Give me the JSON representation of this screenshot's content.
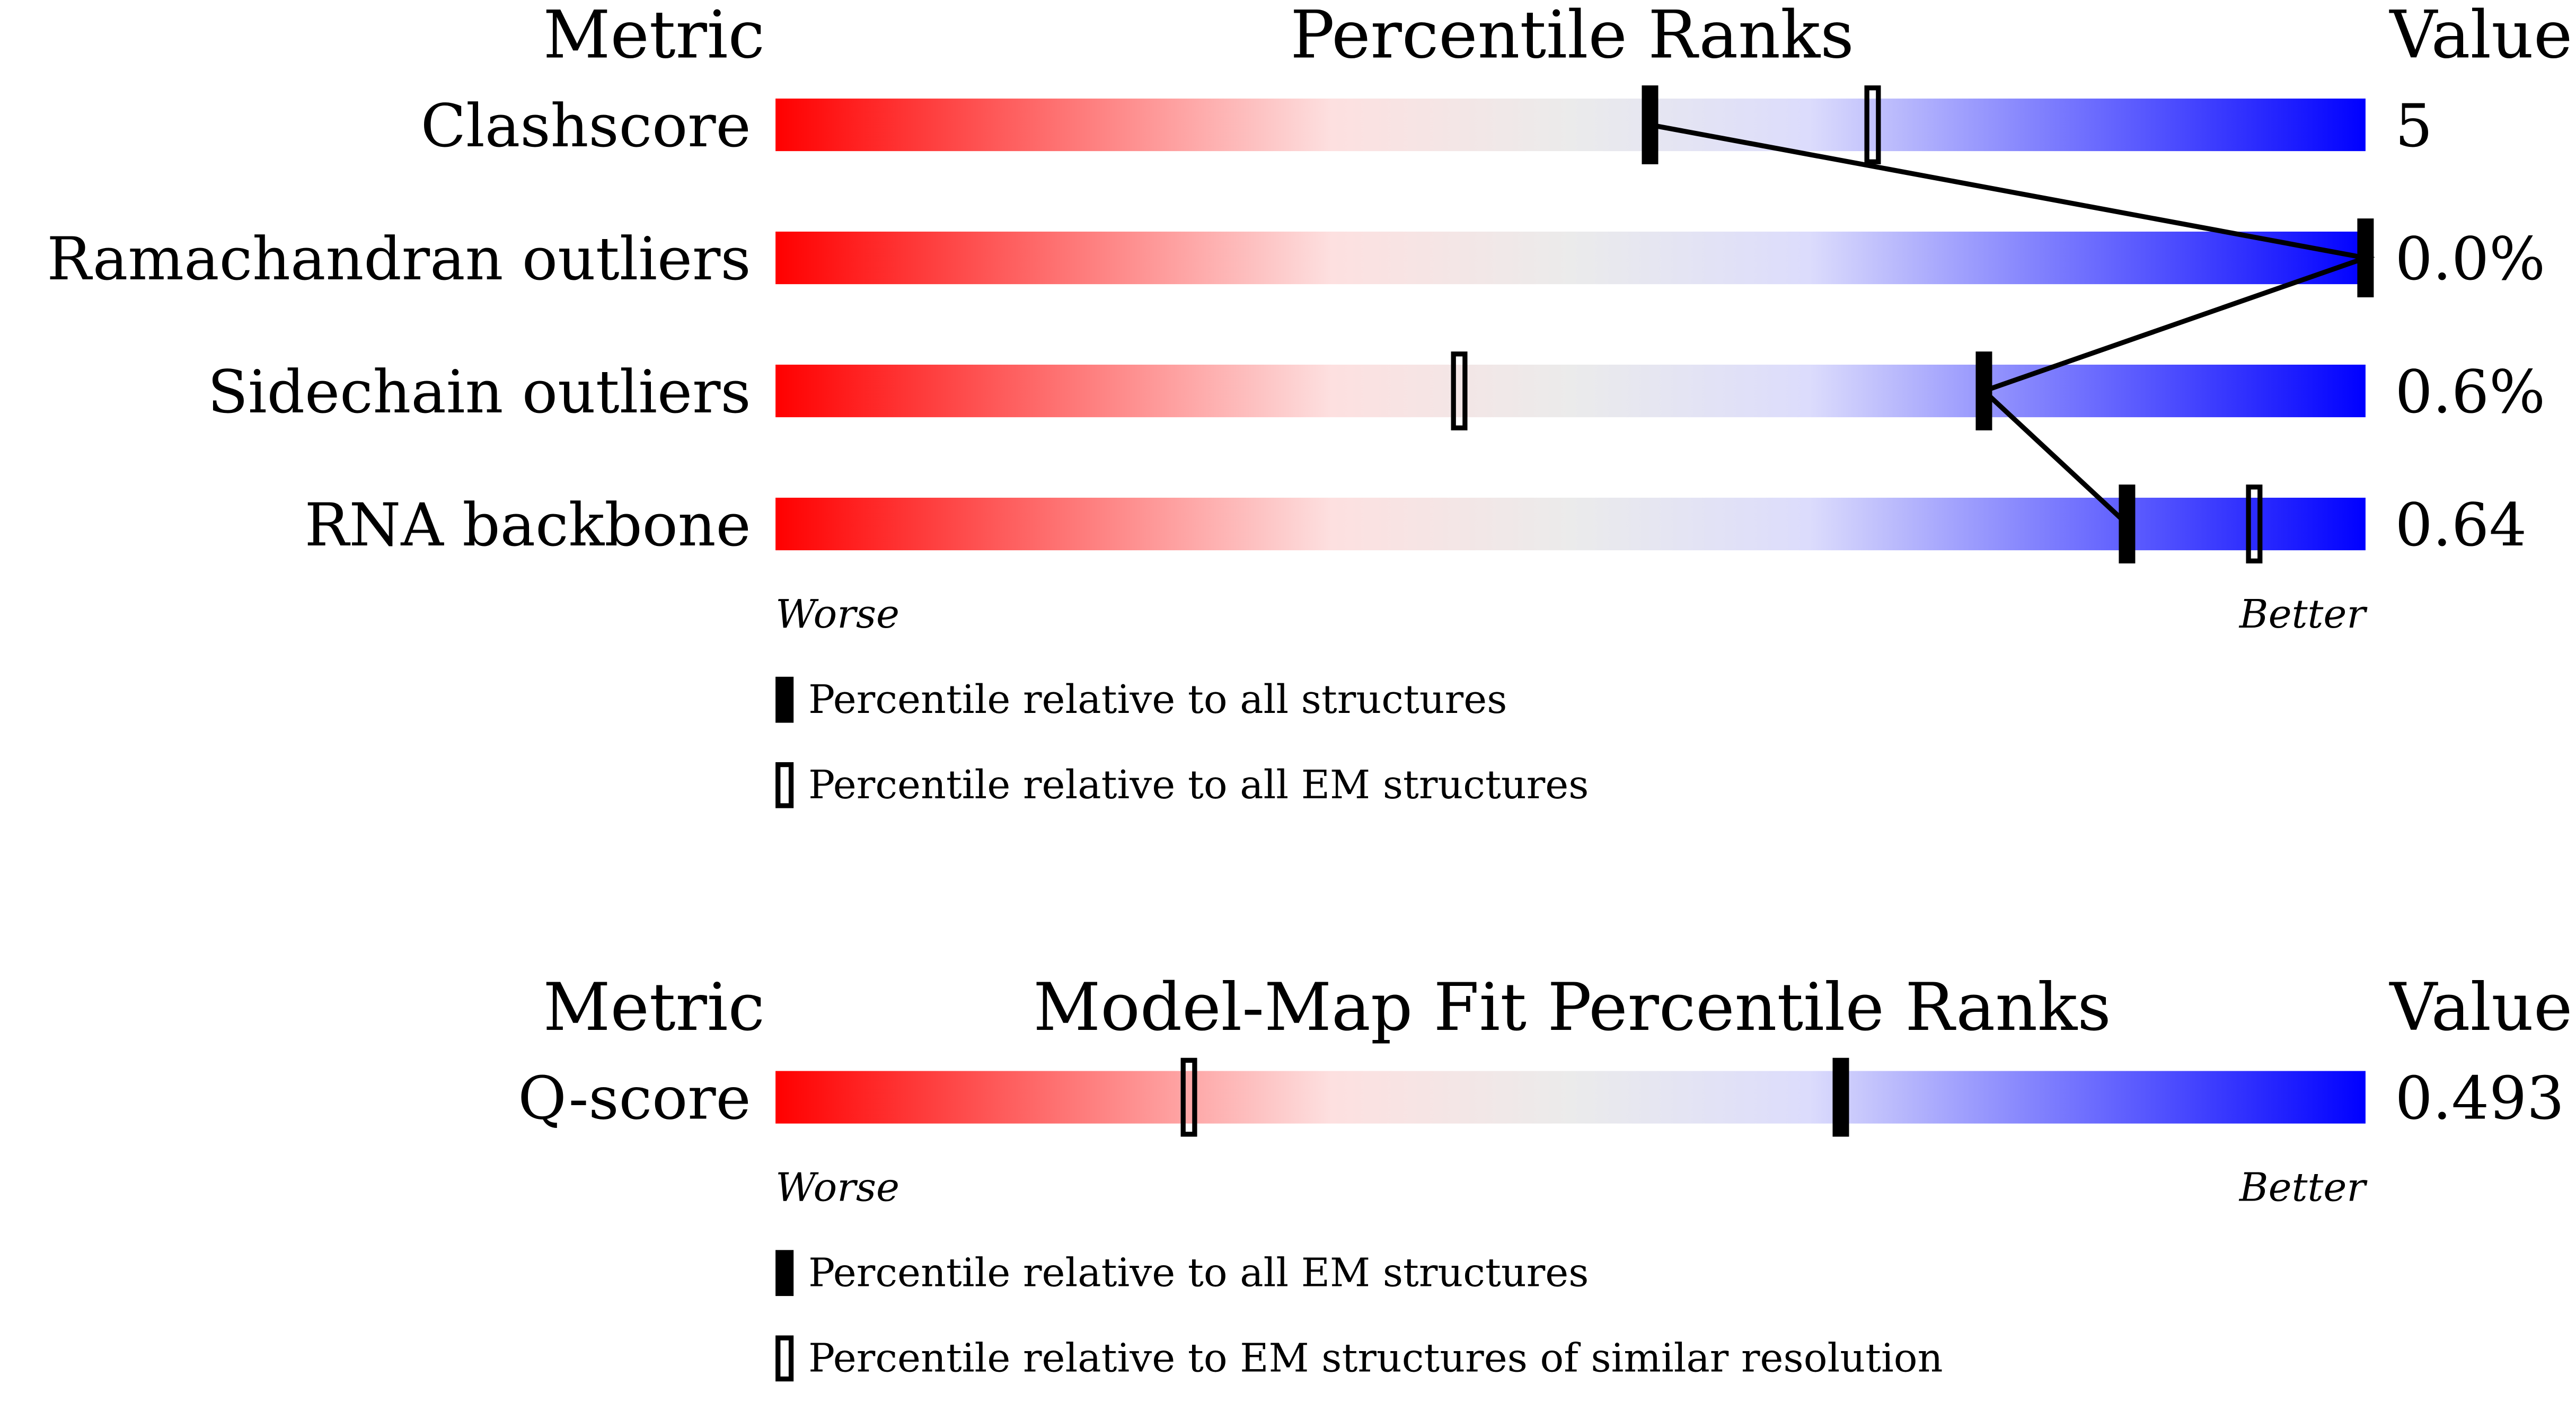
{
  "chart_data": [
    {
      "type": "percentile",
      "metric_header": "Metric",
      "title": "Percentile Ranks",
      "value_header": "Value",
      "xlim": [
        0,
        100
      ],
      "worse_label": "Worse",
      "better_label": "Better",
      "categories": [
        "Clashscore",
        "Ramachandran outliers",
        "Sidechain outliers",
        "RNA backbone"
      ],
      "metric_values": [
        "5",
        "0.0%",
        "0.6%",
        "0.64"
      ],
      "series": [
        {
          "name": "Percentile relative to all structures",
          "marker": "filled",
          "color": "#000000",
          "values": [
            55,
            100,
            76,
            85
          ]
        },
        {
          "name": "Percentile relative to all EM structures",
          "marker": "hollow",
          "color": "#000000",
          "values": [
            69,
            null,
            43,
            93
          ]
        }
      ]
    },
    {
      "type": "percentile",
      "metric_header": "Metric",
      "title": "Model-Map Fit Percentile Ranks",
      "value_header": "Value",
      "xlim": [
        0,
        100
      ],
      "worse_label": "Worse",
      "better_label": "Better",
      "categories": [
        "Q-score"
      ],
      "metric_values": [
        "0.493"
      ],
      "series": [
        {
          "name": "Percentile relative to all EM structures",
          "marker": "filled",
          "color": "#000000",
          "values": [
            67
          ]
        },
        {
          "name": "Percentile relative to EM structures of similar resolution",
          "marker": "hollow",
          "color": "#000000",
          "values": [
            26
          ]
        }
      ]
    }
  ]
}
